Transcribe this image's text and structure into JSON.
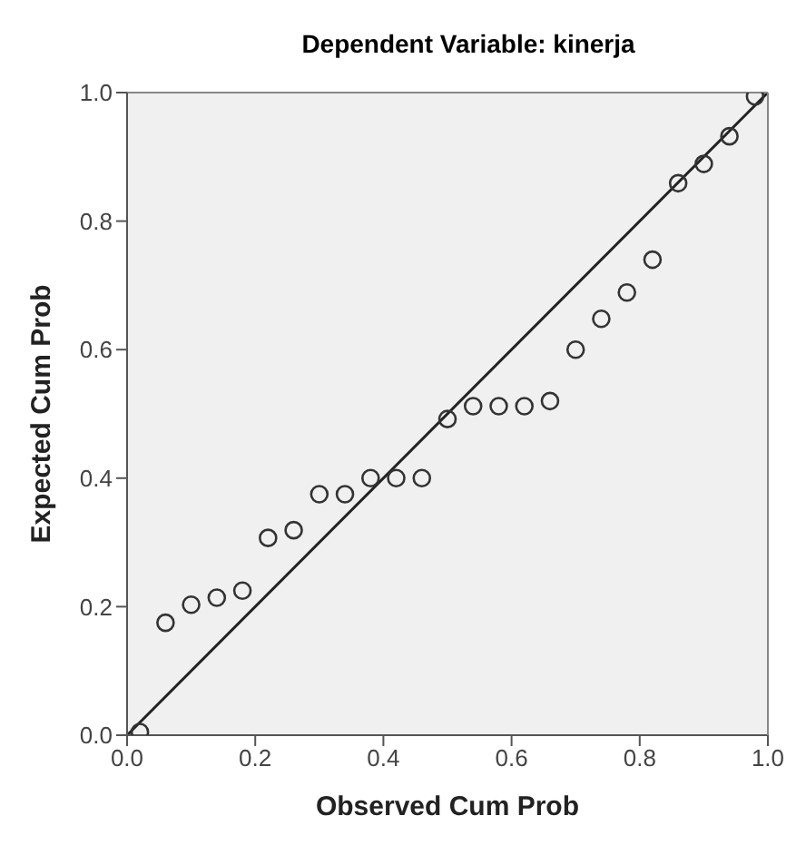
{
  "chart_data": {
    "type": "scatter",
    "title": "Dependent Variable: kinerja",
    "xlabel": "Observed Cum Prob",
    "ylabel": "Expected Cum Prob",
    "xlim": [
      0,
      1
    ],
    "ylim": [
      0,
      1
    ],
    "xticks": [
      {
        "value": 0,
        "label": "0.0"
      },
      {
        "value": 0.2,
        "label": "0.2"
      },
      {
        "value": 0.4,
        "label": "0.4"
      },
      {
        "value": 0.6,
        "label": "0.6"
      },
      {
        "value": 0.8,
        "label": "0.8"
      },
      {
        "value": 1,
        "label": "1.0"
      }
    ],
    "yticks": [
      {
        "value": 0,
        "label": "0.0"
      },
      {
        "value": 0.2,
        "label": "0.2"
      },
      {
        "value": 0.4,
        "label": "0.4"
      },
      {
        "value": 0.6,
        "label": "0.6"
      },
      {
        "value": 0.8,
        "label": "0.8"
      },
      {
        "value": 1,
        "label": "1.0"
      }
    ],
    "series": [
      {
        "color": "#333333",
        "marker": "circle",
        "x": [
          0.02,
          0.06,
          0.1,
          0.14,
          0.18,
          0.22,
          0.26,
          0.3,
          0.34,
          0.38,
          0.42,
          0.46,
          0.5,
          0.54,
          0.58,
          0.62,
          0.66,
          0.7,
          0.74,
          0.78,
          0.82,
          0.86,
          0.9,
          0.94,
          0.98
        ],
        "values": [
          0.005,
          0.175,
          0.203,
          0.214,
          0.225,
          0.307,
          0.319,
          0.375,
          0.375,
          0.4,
          0.4,
          0.4,
          0.492,
          0.512,
          0.512,
          0.512,
          0.52,
          0.6,
          0.648,
          0.689,
          0.74,
          0.859,
          0.889,
          0.932,
          0.994
        ]
      },
      {
        "type": "line",
        "color": "#222222",
        "marker": "none",
        "x": [
          0,
          1
        ],
        "values": [
          0,
          1
        ]
      }
    ]
  }
}
